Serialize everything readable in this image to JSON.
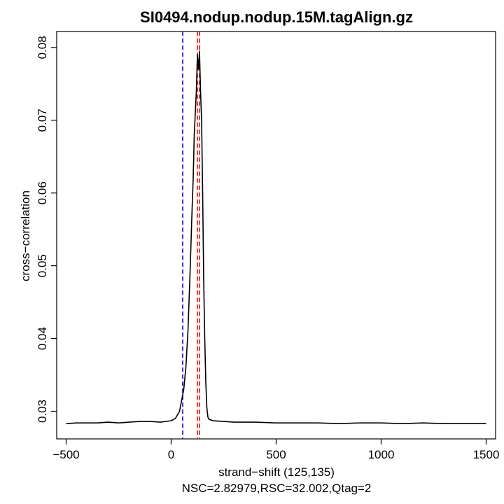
{
  "chart_data": {
    "type": "line",
    "title": "SI0494.nodup.nodup.15M.tagAlign.gz",
    "xlabel": "strand−shift (125,135)",
    "ylabel": "cross−correlation",
    "subtitle": "NSC=2.82979,RSC=32.002,Qtag=2",
    "xlim": [
      -545,
      1545
    ],
    "ylim": [
      0.0262,
      0.0822
    ],
    "xticks": [
      -500,
      0,
      500,
      1000,
      1500
    ],
    "xtick_labels": [
      "−500",
      "0",
      "500",
      "1000",
      "1500"
    ],
    "yticks": [
      0.03,
      0.04,
      0.05,
      0.06,
      0.07,
      0.08
    ],
    "ytick_labels": [
      "0.03",
      "0.04",
      "0.05",
      "0.06",
      "0.07",
      "0.08"
    ],
    "grid": false,
    "series": [
      {
        "color": "#000000",
        "x": [
          -500,
          -450,
          -400,
          -350,
          -300,
          -250,
          -200,
          -150,
          -100,
          -50,
          0,
          20,
          40,
          60,
          70,
          80,
          90,
          100,
          105,
          110,
          115,
          120,
          125,
          130,
          135,
          140,
          145,
          150,
          155,
          160,
          165,
          170,
          175,
          180,
          200,
          250,
          300,
          400,
          500,
          600,
          700,
          800,
          900,
          1000,
          1100,
          1200,
          1300,
          1400,
          1500
        ],
        "y": [
          0.0283,
          0.0284,
          0.0284,
          0.0284,
          0.0285,
          0.0284,
          0.0285,
          0.0286,
          0.0286,
          0.0285,
          0.0287,
          0.029,
          0.03,
          0.033,
          0.036,
          0.041,
          0.049,
          0.058,
          0.062,
          0.068,
          0.071,
          0.074,
          0.079,
          0.077,
          0.0795,
          0.074,
          0.07,
          0.06,
          0.048,
          0.04,
          0.034,
          0.0305,
          0.0292,
          0.0289,
          0.0287,
          0.0286,
          0.0285,
          0.0285,
          0.0284,
          0.0284,
          0.0284,
          0.0283,
          0.0284,
          0.0284,
          0.0283,
          0.0284,
          0.0283,
          0.0283,
          0.0283
        ]
      }
    ],
    "vlines": [
      {
        "x": 55,
        "color": "#0000ff",
        "style": "dashed"
      },
      {
        "x": 125,
        "color": "#ff0000",
        "style": "dashed"
      },
      {
        "x": 135,
        "color": "#ff0000",
        "style": "dashed"
      }
    ]
  }
}
